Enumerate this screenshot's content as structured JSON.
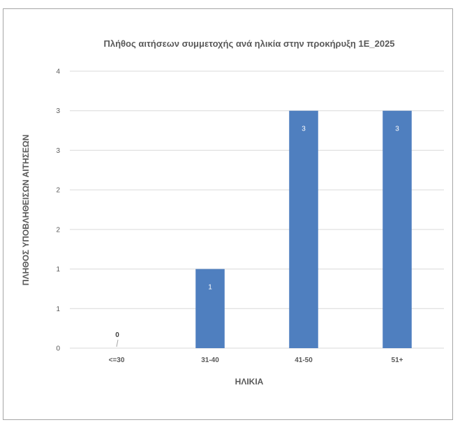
{
  "chart_data": {
    "type": "bar",
    "title": "Πλήθος αιτήσεων συμμετοχής ανά ηλικία στην προκήρυξη 1Ε_2025",
    "xlabel": "ΗΛΙΚΙΑ",
    "ylabel": "ΠΛΗΘΟΣ ΥΠΟΒΛΗΘΕΙΣΩΝ ΑΙΤΗΣΕΩΝ",
    "categories": [
      "<=30",
      "31-40",
      "41-50",
      "51+"
    ],
    "values": [
      0,
      1,
      3,
      3
    ],
    "data_labels": [
      "0",
      "1",
      "3",
      "3"
    ],
    "y_ticks": [
      0,
      0.5,
      1,
      1.5,
      2,
      2.5,
      3,
      3.5
    ],
    "y_tick_labels": [
      "0",
      "1",
      "1",
      "2",
      "2",
      "3",
      "3",
      "4"
    ],
    "ylim": [
      0,
      3.5
    ],
    "grid": true,
    "legend": "none",
    "bar_color": "#4f7fbf"
  }
}
